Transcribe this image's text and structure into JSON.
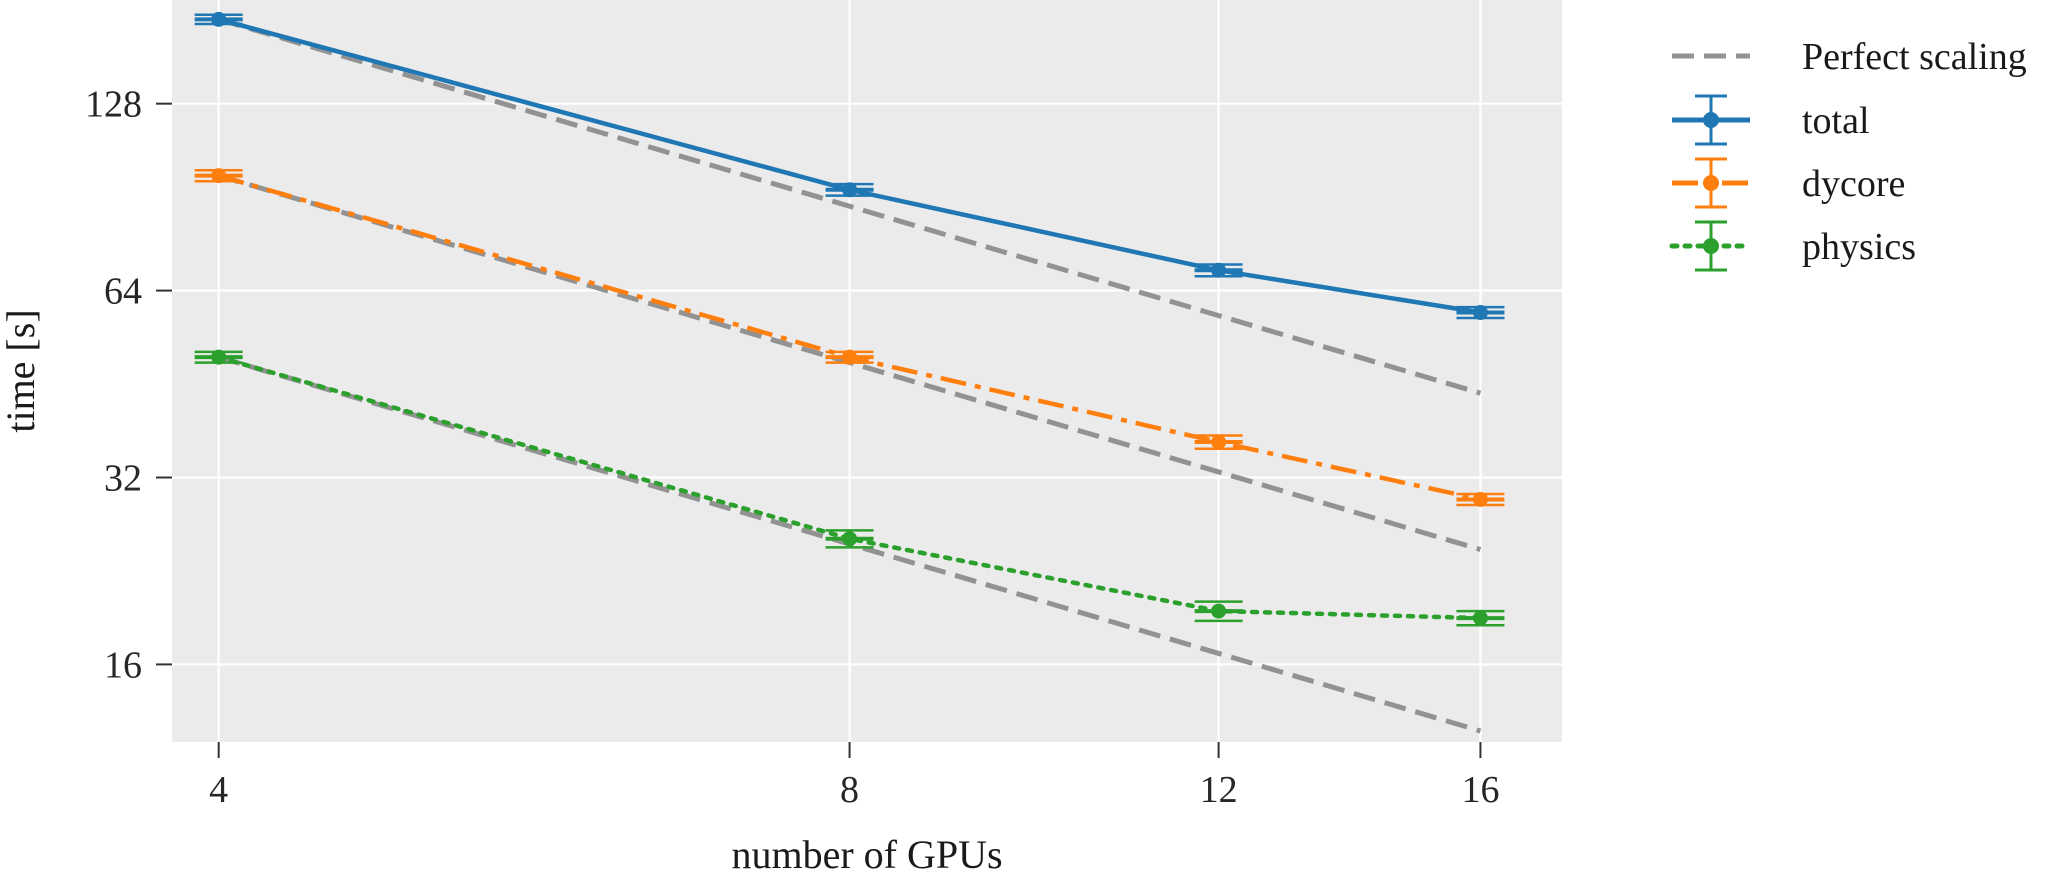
{
  "chart_data": {
    "type": "line",
    "title": "",
    "xlabel": "number of GPUs",
    "ylabel": "time [s]",
    "x_scale": "log",
    "y_scale": "log",
    "xlim": [
      3.8,
      17.5
    ],
    "ylim": [
      12,
      188
    ],
    "x": [
      4,
      8,
      12,
      16
    ],
    "x_ticks": [
      4,
      8,
      12,
      16
    ],
    "x_tick_labels": [
      "4",
      "8",
      "12",
      "16"
    ],
    "y_ticks": [
      16,
      32,
      64,
      128
    ],
    "y_tick_labels": [
      "16",
      "32",
      "64",
      "128"
    ],
    "grid": true,
    "background": "#ebebeb",
    "legend_position": "outside right",
    "series": [
      {
        "name": "Perfect scaling",
        "style": "dashed",
        "color": "#929292",
        "lines": [
          {
            "x": [
              4,
              16
            ],
            "y": [
              175,
              43.75
            ]
          },
          {
            "x": [
              4,
              16
            ],
            "y": [
              98,
              24.5
            ]
          },
          {
            "x": [
              4,
              16
            ],
            "y": [
              50,
              12.5
            ]
          }
        ]
      },
      {
        "name": "total",
        "style": "solid",
        "color": "#1f77b4",
        "x": [
          4,
          8,
          12,
          16
        ],
        "y": [
          175,
          93,
          69,
          59
        ],
        "err": [
          3,
          2,
          1.5,
          1.2
        ]
      },
      {
        "name": "dycore",
        "style": "dashdot",
        "color": "#ff7f0e",
        "x": [
          4,
          8,
          12,
          16
        ],
        "y": [
          98,
          50,
          36.5,
          29.5
        ],
        "err": [
          2,
          1,
          0.9,
          0.6
        ]
      },
      {
        "name": "physics",
        "style": "dotted",
        "color": "#2ca02c",
        "x": [
          4,
          8,
          12,
          16
        ],
        "y": [
          50,
          25.5,
          19.5,
          19
        ],
        "err": [
          1,
          0.8,
          0.7,
          0.5
        ]
      }
    ]
  }
}
